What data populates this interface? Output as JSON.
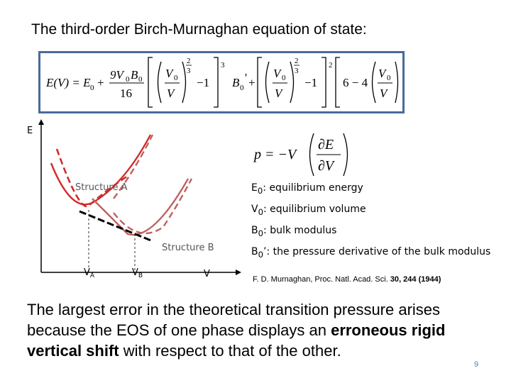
{
  "title": "The third-order Birch-Murnaghan equation of state:",
  "equation_image": {
    "lhs": "E(V) = E",
    "e0_sub": "0",
    "plus": "+",
    "coeff_num": "9V",
    "coeff_num_sub0": "0",
    "coeff_b": "B",
    "coeff_b_sub0": "0",
    "coeff_den": "16",
    "v0": "V",
    "v0_sub": "0",
    "v": "V",
    "exp_23": "2",
    "exp_3": "3",
    "minus_one": "−1",
    "cube": "3",
    "b0p": "B",
    "b0p_sub": "0",
    "b0p_prime": "'",
    "six_minus_four": "6 − 4",
    "square": "2"
  },
  "pressure_equation": {
    "p": "p = −V",
    "dE": "∂E",
    "dV": "∂V"
  },
  "plot": {
    "y_axis_label": "E",
    "structure_a_label": "Structure  A",
    "structure_b_label": "Structure  B",
    "va_label": "V",
    "va_sub": "A",
    "vb_label": "V",
    "vb_sub": "B",
    "v_label": "V"
  },
  "legend": {
    "e0": {
      "sym": "E",
      "sub": "0",
      "text": ": equilibrium energy"
    },
    "v0": {
      "sym": "V",
      "sub": "0",
      "text": ": equilibrium volume"
    },
    "b0": {
      "sym": "B",
      "sub": "0",
      "text": ": bulk modulus"
    },
    "b0p": {
      "sym": "B",
      "sub": "0",
      "prime": "’",
      "text": ": the pressure derivative of the bulk modulus"
    }
  },
  "reference": {
    "prefix": "F. D. Murnaghan, Proc. Natl. Acad. Sci. ",
    "volume": "30",
    "pages": ", 244 (1944)"
  },
  "conclusion": {
    "part1": "The largest error in the theoretical transition pressure arises because the EOS of one phase displays an ",
    "bold": "erroneous rigid vertical shift",
    "part2": " with respect to that of the other."
  },
  "page_number": "9",
  "colors": {
    "curve_a": "#d42a2a",
    "curve_b": "#c06060",
    "box_border": "#4a6a9a",
    "page_number": "#4a7fc0"
  }
}
